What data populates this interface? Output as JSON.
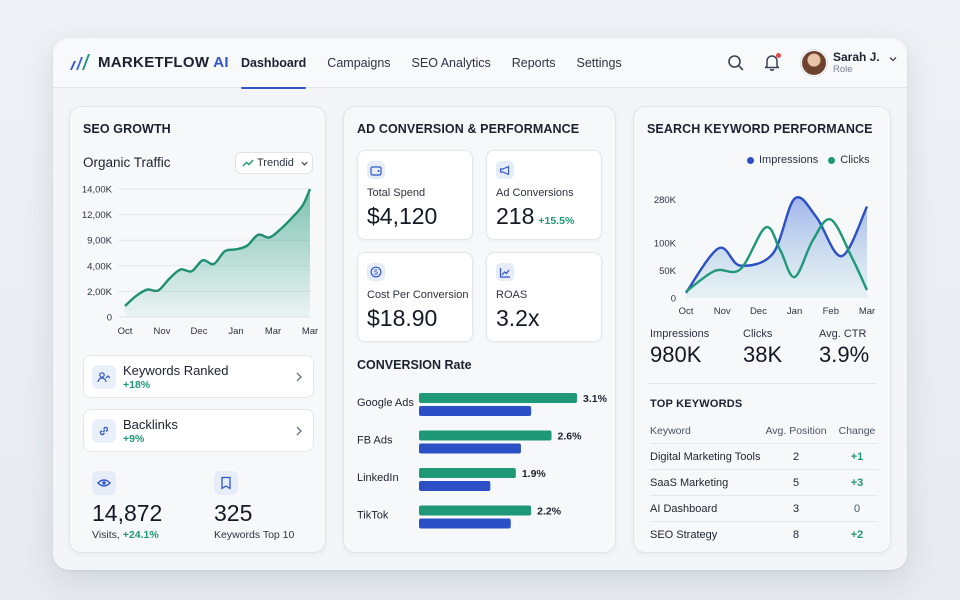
{
  "brand": {
    "name": "MARKETFLOW",
    "suffix": "AI"
  },
  "nav": [
    "Dashboard",
    "Campaigns",
    "SEO Analytics",
    "Reports",
    "Settings"
  ],
  "user": {
    "name": "Sarah J.",
    "role": "Role"
  },
  "seo": {
    "title": "SEO GROWTH",
    "traffic_title": "Organic Traffic",
    "trend_button": "Trendid",
    "metrics": [
      {
        "label": "Keywords Ranked",
        "delta": "+18%",
        "icon": "users-icon"
      },
      {
        "label": "Backlinks",
        "delta": "+9%",
        "icon": "link-icon"
      }
    ],
    "visits": {
      "value": "14,872",
      "label": "Visits,",
      "delta": "+24.1%"
    },
    "top10": {
      "value": "325",
      "label": "Keywords Top 10"
    }
  },
  "ad": {
    "title": "AD CONVERSION & PERFORMANCE",
    "kpis": [
      {
        "label": "Total Spend",
        "value": "$4,120",
        "delta": "",
        "icon": "wallet-icon"
      },
      {
        "label": "Ad Conversions",
        "value": "218",
        "delta": "+15.5%",
        "icon": "megaphone-icon"
      },
      {
        "label": "Cost Per Conversion",
        "value": "$18.90",
        "delta": "",
        "icon": "dollar-icon"
      },
      {
        "label": "ROAS",
        "value": "3.2x",
        "delta": "",
        "icon": "chart-icon"
      }
    ],
    "conversion_title": "CONVERSION Rate"
  },
  "keywords": {
    "title": "SEARCH KEYWORD PERFORMANCE",
    "stats": [
      {
        "label": "Impressions",
        "value": "980K"
      },
      {
        "label": "Clicks",
        "value": "38K"
      },
      {
        "label": "Avg. CTR",
        "value": "3.9%"
      }
    ],
    "top_title": "TOP KEYWORDS",
    "table_headers": [
      "Keyword",
      "Avg. Position",
      "Change"
    ],
    "rows": [
      {
        "keyword": "Digital Marketing Tools",
        "position": "2",
        "change": "+1"
      },
      {
        "keyword": "SaaS Marketing",
        "position": "5",
        "change": "+3"
      },
      {
        "keyword": "AI Dashboard",
        "position": "3",
        "change": "0"
      },
      {
        "keyword": "SEO Strategy",
        "position": "8",
        "change": "+2"
      }
    ]
  },
  "colors": {
    "accent": "#2f55c8",
    "teal": "#1e9877",
    "blue": "#2b4fc4"
  },
  "chart_data": [
    {
      "type": "area",
      "title": "Organic Traffic",
      "categories": [
        "Oct",
        "Nov",
        "Dec",
        "Jan",
        "Mar",
        "Mar"
      ],
      "y_ticks": [
        "0",
        "2,00K",
        "4,00K",
        "9,00K",
        "12,00K",
        "14,00K"
      ],
      "x": [
        0,
        0.3,
        0.6,
        0.9,
        1.2,
        1.5,
        1.8,
        2.1,
        2.4,
        2.7,
        3.0,
        3.3,
        3.6,
        3.9,
        4.2,
        4.5,
        4.8,
        5.0
      ],
      "values": [
        1.2,
        2.3,
        3.0,
        2.9,
        4.2,
        5.2,
        5.0,
        6.2,
        5.8,
        7.2,
        7.4,
        7.8,
        9.0,
        8.7,
        9.6,
        10.8,
        12.2,
        14.0
      ],
      "ylim": [
        0,
        14
      ]
    },
    {
      "type": "bar",
      "title": "CONVERSION Rate",
      "categories": [
        "Google Ads",
        "FB Ads",
        "LinkedIn",
        "TikTok"
      ],
      "series": [
        {
          "values": [
            3.1,
            2.6,
            1.9,
            2.2
          ],
          "color": "#1e9877"
        },
        {
          "values": [
            2.2,
            2.0,
            1.4,
            1.8
          ],
          "color": "#2b4fc4"
        }
      ],
      "data_labels": [
        "3.1%",
        "2.6%",
        "1.9%",
        "2.2%"
      ],
      "xlim": [
        0,
        3.4
      ]
    },
    {
      "type": "area",
      "categories": [
        "Oct",
        "Nov",
        "Dec",
        "Jan",
        "Feb",
        "Mar"
      ],
      "y_ticks": [
        "0",
        "50K",
        "100K",
        "280K"
      ],
      "series": [
        {
          "name": "Impressions",
          "color": "#2b4fc4",
          "x": [
            0,
            0.9,
            1.5,
            2.4,
            3.0,
            3.6,
            4.3,
            5.0
          ],
          "values": [
            10,
            95,
            62,
            85,
            190,
            155,
            80,
            175
          ]
        },
        {
          "name": "Clicks",
          "color": "#1e9877",
          "x": [
            0,
            0.8,
            1.5,
            2.2,
            2.6,
            3.0,
            3.5,
            4.0,
            4.6,
            5.0
          ],
          "values": [
            12,
            52,
            55,
            135,
            92,
            40,
            110,
            150,
            75,
            15
          ]
        }
      ],
      "ylim": [
        0,
        220
      ]
    }
  ]
}
